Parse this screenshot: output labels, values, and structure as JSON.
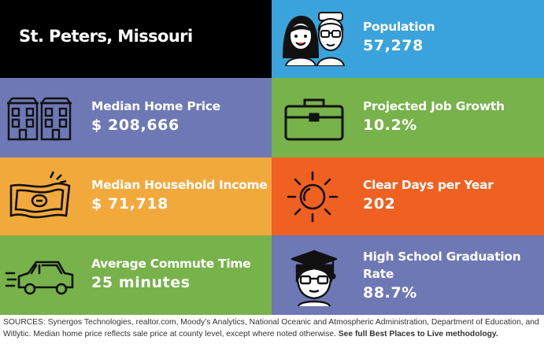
{
  "title": "St. Peters, Missouri",
  "colors": {
    "title_bg": "#000000",
    "population_bg": "#3aa3db",
    "home_price_bg": "#6d78b5",
    "job_growth_bg": "#77b24a",
    "income_bg": "#f2a93c",
    "clear_days_bg": "#f06021",
    "commute_bg": "#77b24a",
    "graduation_bg": "#6d78b5",
    "text": "#ffffff"
  },
  "tiles": {
    "population": {
      "label": "Population",
      "value": "57,278",
      "icon": "people-icon"
    },
    "home_price": {
      "label": "Median Home Price",
      "value": "$ 208,666",
      "icon": "houses-icon"
    },
    "job_growth": {
      "label": "Projected Job Growth",
      "value": "10.2%",
      "icon": "briefcase-icon"
    },
    "income": {
      "label": "Median Household Income",
      "value": "$ 71,718",
      "icon": "money-icon"
    },
    "clear_days": {
      "label": "Clear Days per Year",
      "value": "202",
      "icon": "sun-icon"
    },
    "commute": {
      "label": "Average Commute Time",
      "value": "25 minutes",
      "icon": "car-icon"
    },
    "graduation": {
      "label_line1": "High School Graduation",
      "label_line2": "Rate",
      "value": "88.7%",
      "icon": "graduate-icon"
    }
  },
  "sources": {
    "text": "SOURCES: Synergos Technologies, realtor.com, Moody’s Analytics, National Oceanic and Atmospheric Administration, Department of Education, and Witlytic. Median home price reflects sale price at county level, except where noted otherwise.",
    "link": "See full Best Places to Live methodology."
  }
}
